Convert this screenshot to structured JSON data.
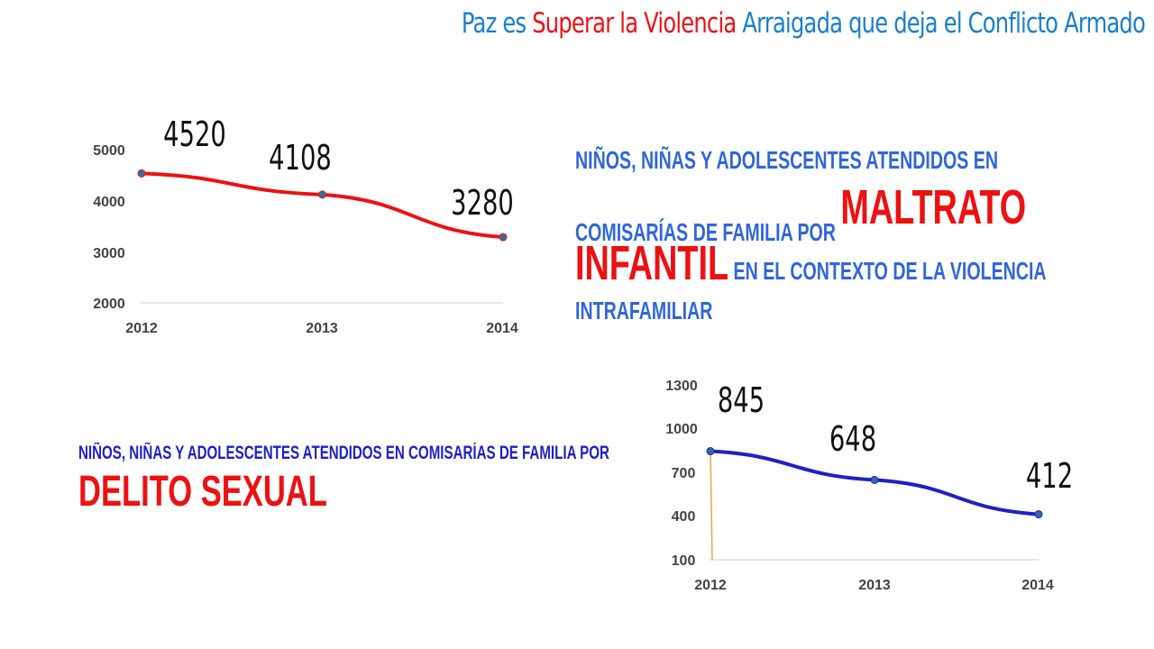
{
  "header": {
    "title_parts": [
      {
        "text": "Paz es ",
        "color": "#1a7fcc"
      },
      {
        "text": "Superar  la Violencia ",
        "color": "#ee1111"
      },
      {
        "text": "Arraigada  que  deja  el Conflicto  Armado",
        "color": "#1a7fcc"
      }
    ]
  },
  "maltrato": {
    "line1": "NIÑOS, NIÑAS Y ADOLESCENTES  ATENDIDOS  EN",
    "line2_prefix": "COMISARÍAS  DE FAMILIA  POR ",
    "highlight_a": "MALTRATO",
    "highlight_b": "INFANTIL",
    "line3_suffix": " EN EL CONTEXTO  DE LA  VIOLENCIA",
    "line4": "INTRAFAMILIAR"
  },
  "delito": {
    "line1": "NIÑOS, NIÑAS Y ADOLESCENTES ATENDIDOS EN COMISARÍAS DE FAMILIA POR",
    "highlight": "DELITO SEXUAL"
  },
  "colors": {
    "line_red": "#ee1111",
    "line_blue": "#1f20c9",
    "marker": "#2f6f9f",
    "axis": "#d0d0d0",
    "tick_text": "#444444",
    "guide": "#f0a050",
    "caption_blue": "#2f66e0",
    "caption_navy": "#1f20c9",
    "highlight_red": "#ee1111"
  },
  "chart_data": [
    {
      "type": "line",
      "categories": [
        "2012",
        "2013",
        "2014"
      ],
      "values": [
        4520,
        4108,
        3280
      ],
      "data_labels": [
        "4520",
        "4108",
        "3280"
      ],
      "y_ticks": [
        "2000",
        "3000",
        "4000",
        "5000"
      ],
      "ylim": [
        2000,
        5000
      ],
      "grid": false,
      "title": "",
      "xlabel": "",
      "ylabel": ""
    },
    {
      "type": "line",
      "categories": [
        "2012",
        "2013",
        "2014"
      ],
      "values": [
        845,
        648,
        412
      ],
      "data_labels": [
        "845",
        "648",
        "412"
      ],
      "y_ticks": [
        "100",
        "400",
        "700",
        "1000",
        "1300"
      ],
      "ylim": [
        100,
        1300
      ],
      "grid": false,
      "title": "",
      "xlabel": "",
      "ylabel": ""
    }
  ]
}
